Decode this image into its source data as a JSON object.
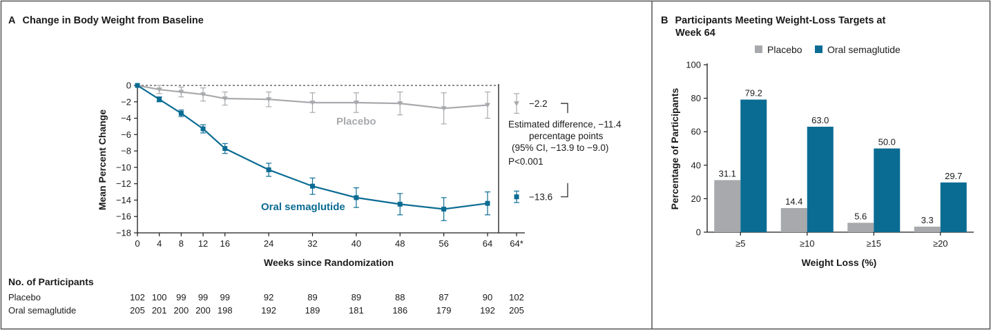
{
  "colors": {
    "placebo": "#a7a9ac",
    "semaglutide": "#0b6c93",
    "text": "#1a1a1a",
    "border": "#555555"
  },
  "chart_data": [
    {
      "type": "line",
      "panel_letter": "A",
      "title": "Change in Body Weight from Baseline",
      "xlabel": "Weeks since Randomization",
      "ylabel": "Mean Percent Change",
      "ylim": [
        -18,
        0
      ],
      "yticks": [
        0,
        -2,
        -4,
        -6,
        -8,
        -10,
        -12,
        -14,
        -16,
        -18
      ],
      "ytick_labels": [
        "0",
        "−2",
        "−4",
        "−6",
        "−8",
        "−10",
        "−12",
        "−14",
        "−16",
        "−18"
      ],
      "x": [
        0,
        4,
        8,
        12,
        16,
        24,
        32,
        40,
        48,
        56,
        64
      ],
      "xtick_labels": [
        "0",
        "4",
        "8",
        "12",
        "16",
        "24",
        "32",
        "40",
        "48",
        "56",
        "64",
        "64*"
      ],
      "reference_line": 0,
      "series": [
        {
          "name": "Placebo",
          "key": "placebo",
          "values": [
            0,
            -0.5,
            -0.8,
            -1.1,
            -1.6,
            -1.7,
            -2.1,
            -2.1,
            -2.2,
            -2.8,
            -2.4
          ],
          "error": [
            0,
            0.5,
            0.6,
            0.8,
            0.8,
            0.9,
            1.2,
            1.2,
            1.4,
            1.9,
            1.6
          ],
          "endpoint": -2.2,
          "endpoint_error": 1.2,
          "endpoint_label": "−2.2"
        },
        {
          "name": "Oral semaglutide",
          "key": "semaglutide",
          "values": [
            0,
            -1.7,
            -3.4,
            -5.3,
            -7.7,
            -10.3,
            -12.3,
            -13.7,
            -14.5,
            -15.1,
            -14.4
          ],
          "error": [
            0,
            0.3,
            0.4,
            0.5,
            0.6,
            0.8,
            1.0,
            1.2,
            1.3,
            1.4,
            1.4
          ],
          "endpoint": -13.6,
          "endpoint_error": 0.7,
          "endpoint_label": "−13.6"
        }
      ],
      "annotation": {
        "line1": "Estimated difference, −11.4",
        "line2": "percentage points",
        "line3": "(95% CI, −13.9 to −9.0)",
        "line4": "P<0.001"
      },
      "participants": {
        "heading": "No. of Participants",
        "rows": [
          {
            "label": "Placebo",
            "counts": [
              "102",
              "100",
              "99",
              "99",
              "99",
              "92",
              "89",
              "89",
              "88",
              "87",
              "90",
              "102"
            ]
          },
          {
            "label": "Oral semaglutide",
            "counts": [
              "205",
              "201",
              "200",
              "200",
              "198",
              "192",
              "189",
              "181",
              "186",
              "179",
              "192",
              "205"
            ]
          }
        ]
      }
    },
    {
      "type": "bar",
      "panel_letter": "B",
      "title_line1": "Participants Meeting Weight-Loss Targets at",
      "title_line2": "Week 64",
      "xlabel": "Weight Loss (%)",
      "ylabel": "Percentage of Participants",
      "ylim": [
        0,
        100
      ],
      "yticks": [
        0,
        20,
        40,
        60,
        80,
        100
      ],
      "categories": [
        "≥5",
        "≥10",
        "≥15",
        "≥20"
      ],
      "series": [
        {
          "name": "Placebo",
          "key": "placebo",
          "values": [
            31.1,
            14.4,
            5.6,
            3.3
          ],
          "labels": [
            "31.1",
            "14.4",
            "5.6",
            "3.3"
          ]
        },
        {
          "name": "Oral semaglutide",
          "key": "semaglutide",
          "values": [
            79.2,
            63.0,
            50.0,
            29.7
          ],
          "labels": [
            "79.2",
            "63.0",
            "50.0",
            "29.7"
          ]
        }
      ],
      "legend_position": "top"
    }
  ]
}
